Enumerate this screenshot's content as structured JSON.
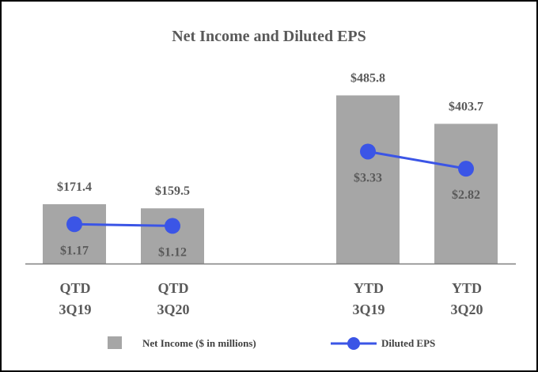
{
  "chart_data": {
    "type": "bar",
    "title": "Net Income and Diluted EPS",
    "categories": [
      [
        "QTD",
        "3Q19"
      ],
      [
        "QTD",
        "3Q20"
      ],
      [
        "YTD",
        "3Q19"
      ],
      [
        "YTD",
        "3Q20"
      ]
    ],
    "series": [
      {
        "name": "Net Income ($ in millions)",
        "type": "bar",
        "color": "#a6a6a6",
        "values": [
          171.4,
          159.5,
          485.8,
          403.7
        ],
        "labels": [
          "$171.4",
          "$159.5",
          "$485.8",
          "$403.7"
        ]
      },
      {
        "name": "Diluted EPS",
        "type": "line",
        "color": "#3b55e6",
        "values": [
          1.17,
          1.12,
          3.33,
          2.82
        ],
        "labels": [
          "$1.17",
          "$1.12",
          "$3.33",
          "$2.82"
        ],
        "segments": [
          [
            0,
            1
          ],
          [
            2,
            3
          ]
        ]
      }
    ],
    "ylim_bar": [
      0,
      690
    ],
    "ylim_eps": [
      0,
      6
    ],
    "grid": false,
    "legend_position": "bottom"
  }
}
